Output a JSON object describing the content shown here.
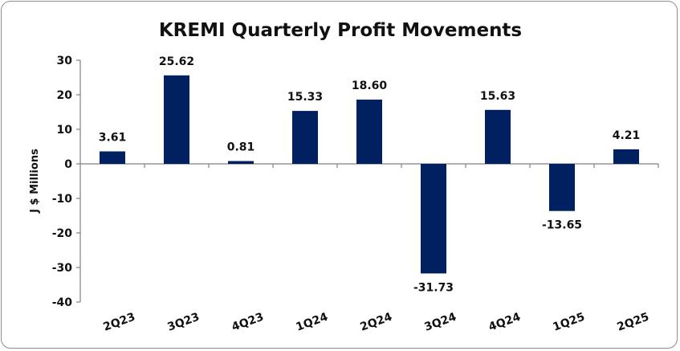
{
  "chart_data": {
    "type": "bar",
    "title": "KREMI Quarterly Profit Movements",
    "xlabel": "",
    "ylabel": "J $ Millions",
    "categories": [
      "2Q23",
      "3Q23",
      "4Q23",
      "1Q24",
      "2Q24",
      "3Q24",
      "4Q24",
      "1Q25",
      "2Q25"
    ],
    "values": [
      3.61,
      25.62,
      0.81,
      15.33,
      18.6,
      -31.73,
      15.63,
      -13.65,
      4.21
    ],
    "value_labels": [
      "3.61",
      "25.62",
      "0.81",
      "15.33",
      "18.60",
      "-31.73",
      "15.63",
      "-13.65",
      "4.21"
    ],
    "ylim": [
      -40,
      30
    ],
    "yticks": [
      30,
      20,
      10,
      0,
      -10,
      -20,
      -30,
      -40
    ],
    "grid": false,
    "legend": "none",
    "bar_color": "#002060"
  }
}
